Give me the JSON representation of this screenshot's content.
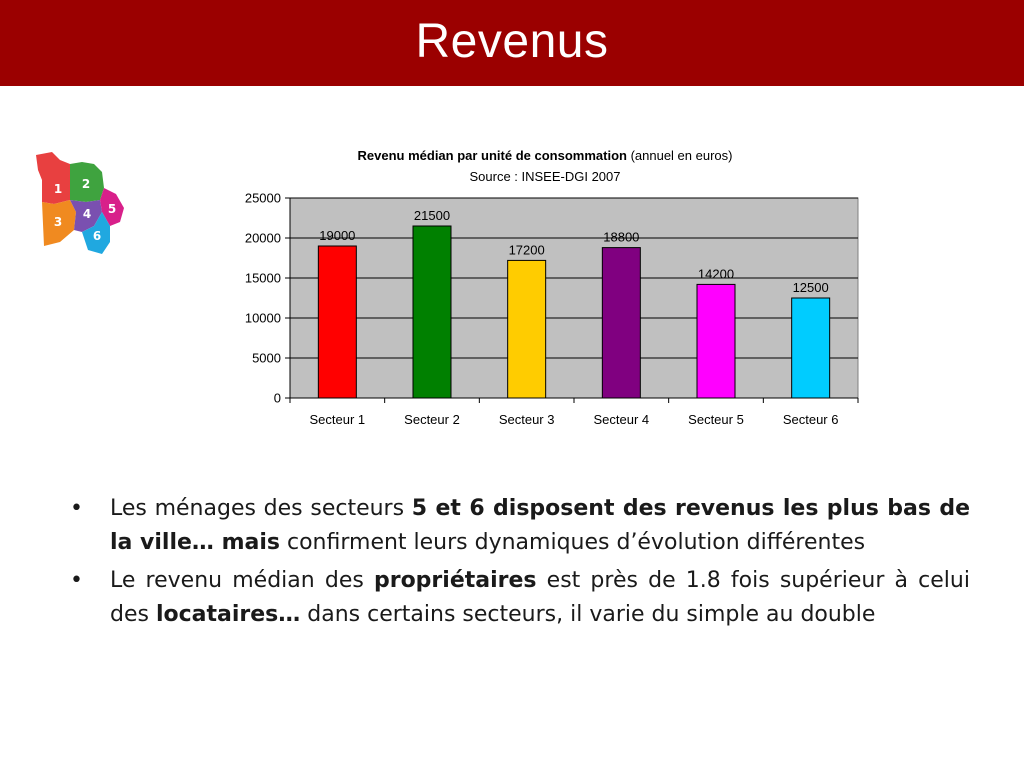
{
  "slide": {
    "title": "Revenus",
    "accent_color": "#9b0000"
  },
  "map": {
    "icon": "district-map-icon",
    "sectors": [
      "1",
      "2",
      "3",
      "4",
      "5",
      "6"
    ],
    "colors": [
      "#e84040",
      "#3fa33f",
      "#f08a20",
      "#7a50b0",
      "#d8208a",
      "#20a8e0"
    ]
  },
  "chart_data": {
    "type": "bar",
    "title_bold": "Revenu médian par unité de consommation",
    "title_rest": " (annuel en euros)",
    "subtitle": "Source : INSEE-DGI 2007",
    "categories": [
      "Secteur 1",
      "Secteur 2",
      "Secteur 3",
      "Secteur 4",
      "Secteur 5",
      "Secteur 6"
    ],
    "values": [
      19000,
      21500,
      17200,
      18800,
      14200,
      12500
    ],
    "colors": [
      "#ff0000",
      "#008000",
      "#ffcc00",
      "#800080",
      "#ff00ff",
      "#00ccff"
    ],
    "ylim": [
      0,
      25000
    ],
    "yticks": [
      0,
      5000,
      10000,
      15000,
      20000,
      25000
    ],
    "grid": true,
    "legend": "none",
    "plot_background": "#c0c0c0"
  },
  "bullets": [
    {
      "parts": [
        {
          "text": " Les ménages des secteurs ",
          "bold": false
        },
        {
          "text": "5 et 6 disposent des revenus les plus bas de la ville… mais",
          "bold": true
        },
        {
          "text": " confirment leurs dynamiques d’évolution différentes",
          "bold": false
        }
      ]
    },
    {
      "parts": [
        {
          "text": " Le revenu médian des ",
          "bold": false
        },
        {
          "text": "propriétaires",
          "bold": true
        },
        {
          "text": " est près de 1.8 fois supérieur à celui des ",
          "bold": false
        },
        {
          "text": "locataires…",
          "bold": true
        },
        {
          "text": " dans certains secteurs, il varie du simple au double",
          "bold": false
        }
      ]
    }
  ]
}
